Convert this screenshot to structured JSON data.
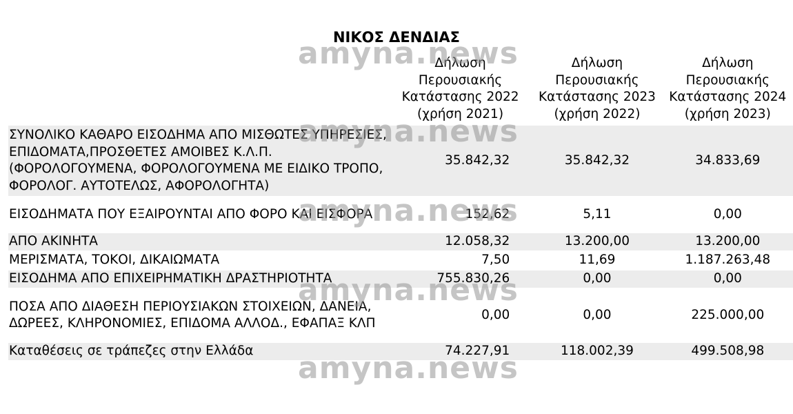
{
  "title": "ΝΙΚΟΣ ΔΕΝΔΙΑΣ",
  "watermark": "amyna.news",
  "columns": [
    "Δήλωση Περουσιακής Κατάστασης 2022 (χρήση 2021)",
    "Δήλωση Περουσιακής Κατάστασης 2023 (χρήση 2022)",
    "Δήλωση Περουσιακής Κατάστασης 2024 (χρήση 2023)"
  ],
  "rows": [
    {
      "label": "ΣΥΝΟΛΙΚΟ ΚΑΘΑΡΟ ΕΙΣΟΔΗΜΑ ΑΠΟ ΜΙΣΘΩΤΕΣ ΥΠΗΡΕΣΙΕΣ, ΕΠΙΔΟΜΑΤΑ,ΠΡΟΣΘΕΤΕΣ ΑΜΟΙΒΕΣ Κ.Λ.Π. (ΦΟΡΟΛΟΓΟΥΜΕΝΑ, ΦΟΡΟΛΟΓΟΥΜΕΝΑ ΜΕ ΕΙΔΙΚΟ ΤΡΟΠΟ, ΦΟΡΟΛΟΓ. ΑΥΤΟΤΕΛΩΣ, ΑΦΟΡΟΛΟΓΗΤΑ)",
      "values": [
        "35.842,32",
        "35.842,32",
        "34.833,69"
      ]
    },
    {
      "label": "ΕΙΣΟΔΗΜΑΤΑ ΠΟΥ ΕΞΑΙΡΟΥΝΤΑΙ ΑΠΟ ΦΟΡΟ ΚΑΙ ΕΙΣΦΟΡΑ",
      "values": [
        "152,62",
        "5,11",
        "0,00"
      ]
    },
    {
      "label": "ΑΠΟ ΑΚΙΝΗΤΑ",
      "values": [
        "12.058,32",
        "13.200,00",
        "13.200,00"
      ]
    },
    {
      "label": "ΜΕΡΙΣΜΑΤΑ, ΤΟΚΟΙ, ΔΙΚΑΙΩΜΑΤΑ",
      "values": [
        "7,50",
        "11,69",
        "1.187.263,48"
      ]
    },
    {
      "label": "ΕΙΣΟΔΗΜΑ ΑΠΟ ΕΠΙΧΕΙΡΗΜΑΤΙΚΗ ΔΡΑΣΤΗΡΙΟΤΗΤΑ",
      "values": [
        "755.830,26",
        "0,00",
        "0,00"
      ]
    },
    {
      "label": "ΠΟΣΑ ΑΠΟ ΔΙΑΘΕΣΗ ΠΕΡΙΟΥΣΙΑΚΩΝ ΣΤΟΙΧΕΙΩΝ, ΔΑΝΕΙΑ, ΔΩΡΕΕΣ, ΚΛΗΡΟΝΟΜΙΕΣ, ΕΠΙΔΟΜΑ ΑΛΛΟΔ., ΕΦΑΠΑΞ ΚΛΠ",
      "values": [
        "0,00",
        "0,00",
        "225.000,00"
      ]
    },
    {
      "label": "Καταθέσεις σε τράπεζες στην Ελλάδα",
      "values": [
        "74.227,91",
        "118.002,39",
        "499.508,98"
      ]
    }
  ]
}
